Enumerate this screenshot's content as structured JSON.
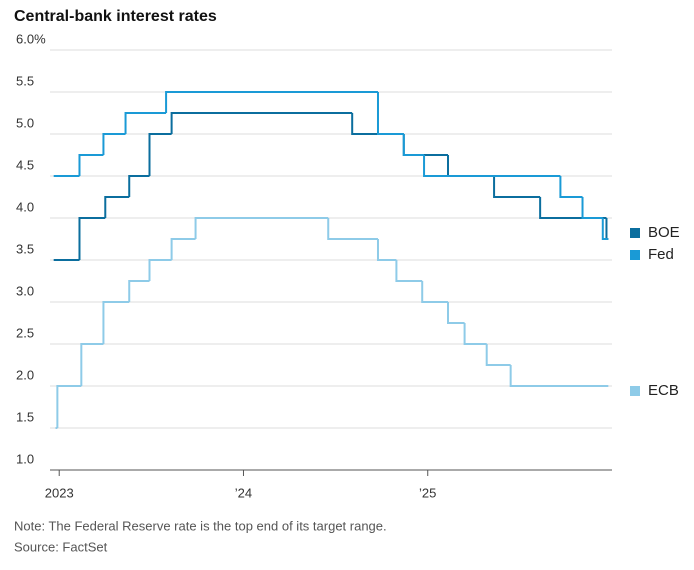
{
  "chart_data": {
    "type": "step",
    "title": "Central-bank interest rates",
    "note": "Note: The Federal Reserve rate is the top end of its target range.",
    "source": "Source: FactSet",
    "xlim": [
      2022.95,
      2026.0
    ],
    "xticks": [
      {
        "value": 2023,
        "label": "2023"
      },
      {
        "value": 2024,
        "label": "’24"
      },
      {
        "value": 2025,
        "label": "’25"
      }
    ],
    "ylim": [
      1,
      6
    ],
    "yticks": [
      {
        "value": 1,
        "label": "1.0"
      },
      {
        "value": 1.5,
        "label": "1.5"
      },
      {
        "value": 2,
        "label": "2.0"
      },
      {
        "value": 2.5,
        "label": "2.5"
      },
      {
        "value": 3,
        "label": "3.0"
      },
      {
        "value": 3.5,
        "label": "3.5"
      },
      {
        "value": 4,
        "label": "4.0"
      },
      {
        "value": 4.5,
        "label": "4.5"
      },
      {
        "value": 5,
        "label": "5.0"
      },
      {
        "value": 5.5,
        "label": "5.5"
      },
      {
        "value": 6,
        "label": "6.0%"
      }
    ],
    "grid": true,
    "series": [
      {
        "name": "BOE",
        "color": "#0b6e9e",
        "x": [
          2022.97,
          2023.11,
          2023.25,
          2023.38,
          2023.49,
          2023.61,
          2024.59,
          2024.87,
          2025.11,
          2025.36,
          2025.61,
          2025.97,
          2025.98
        ],
        "values": [
          3.5,
          4.0,
          4.25,
          4.5,
          5.0,
          5.25,
          5.0,
          4.75,
          4.5,
          4.25,
          4.0,
          3.75,
          3.75
        ]
      },
      {
        "name": "Fed",
        "color": "#1a9ad6",
        "x": [
          2022.97,
          2023.11,
          2023.24,
          2023.36,
          2023.58,
          2024.73,
          2024.87,
          2024.98,
          2025.72,
          2025.84,
          2025.95,
          2025.98
        ],
        "values": [
          4.5,
          4.75,
          5.0,
          5.25,
          5.5,
          5.0,
          4.75,
          4.5,
          4.25,
          4.0,
          3.75,
          3.75
        ]
      },
      {
        "name": "ECB",
        "color": "#8ecbe8",
        "x": [
          2022.98,
          2022.99,
          2023.12,
          2023.24,
          2023.38,
          2023.49,
          2023.61,
          2023.74,
          2024.46,
          2024.73,
          2024.83,
          2024.97,
          2025.11,
          2025.2,
          2025.32,
          2025.45,
          2025.98
        ],
        "values": [
          1.5,
          2.0,
          2.5,
          3.0,
          3.25,
          3.5,
          3.75,
          4.0,
          3.75,
          3.5,
          3.25,
          3.0,
          2.75,
          2.5,
          2.25,
          2.0,
          2.0
        ]
      }
    ]
  }
}
